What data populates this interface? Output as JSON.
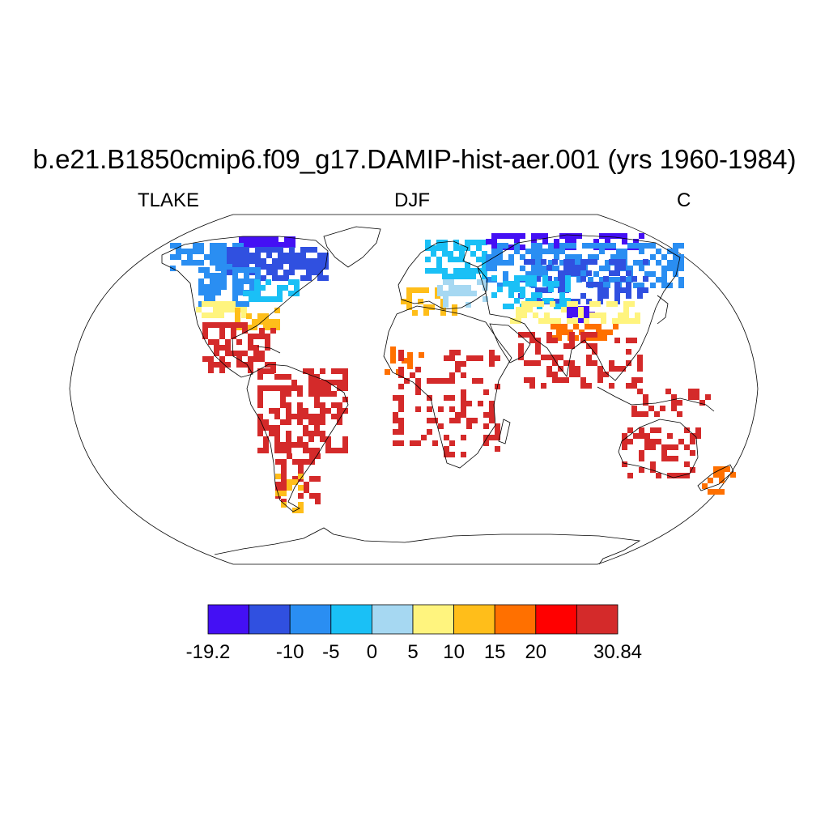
{
  "title": "b.e21.B1850cmip6.f09_g17.DAMIP-hist-aer.001 (yrs 1960-1984)",
  "left_label": "TLAKE",
  "center_label": "DJF",
  "right_label": "C",
  "colorbar": {
    "colors": [
      "#4410f4",
      "#3050e0",
      "#2a8ef2",
      "#1ac0f6",
      "#a6d8f2",
      "#fff47e",
      "#ffbe1a",
      "#ff7000",
      "#ff0000",
      "#d42a2a"
    ],
    "labels": [
      {
        "text": "-19.2",
        "boundary": 0
      },
      {
        "text": "-10",
        "boundary": 2
      },
      {
        "text": "-5",
        "boundary": 3
      },
      {
        "text": "0",
        "boundary": 4
      },
      {
        "text": "5",
        "boundary": 5
      },
      {
        "text": "10",
        "boundary": 6
      },
      {
        "text": "15",
        "boundary": 7
      },
      {
        "text": "20",
        "boundary": 8
      },
      {
        "text": "30.84",
        "boundary": 10
      }
    ]
  }
}
